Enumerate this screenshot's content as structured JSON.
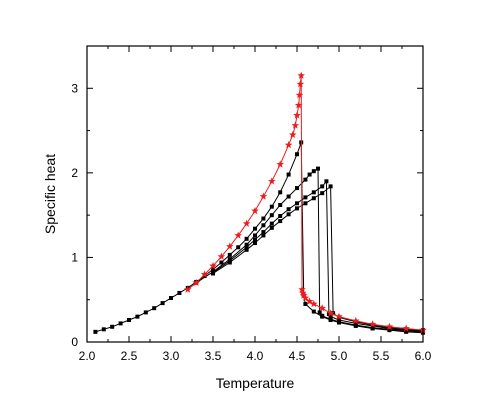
{
  "chart_data": {
    "type": "line",
    "title": "",
    "xlabel": "Temperature",
    "ylabel": "Specific heat",
    "xlim": [
      2.0,
      6.0
    ],
    "ylim": [
      0,
      3.5
    ],
    "xticks": [
      2.0,
      2.5,
      3.0,
      3.5,
      4.0,
      4.5,
      5.0,
      5.5,
      6.0
    ],
    "yticks": [
      0,
      1,
      2,
      3
    ],
    "xtick_labels": [
      "2.0",
      "2.5",
      "3.0",
      "3.5",
      "4.0",
      "4.5",
      "5.0",
      "5.5",
      "6.0"
    ],
    "ytick_labels": [
      "0",
      "1",
      "2",
      "3"
    ],
    "grid": false,
    "legend": "none",
    "series": [
      {
        "color": "#000000",
        "marker": "square",
        "x": [
          2.1,
          2.2,
          2.3,
          2.4,
          2.5,
          2.6,
          2.7,
          2.8,
          2.9,
          3.0,
          3.1,
          3.2,
          3.3,
          3.4,
          3.5,
          3.6,
          3.7,
          3.8,
          3.9,
          4.0,
          4.1,
          4.2,
          4.3,
          4.4,
          4.5,
          4.55,
          4.58,
          4.6,
          4.7,
          4.8,
          4.9,
          5.0,
          5.2,
          5.4,
          5.6,
          5.8,
          6.0
        ],
        "values": [
          0.12,
          0.15,
          0.18,
          0.22,
          0.26,
          0.3,
          0.35,
          0.4,
          0.46,
          0.52,
          0.58,
          0.64,
          0.71,
          0.78,
          0.86,
          0.94,
          1.03,
          1.12,
          1.22,
          1.34,
          1.46,
          1.6,
          1.77,
          1.98,
          2.22,
          2.36,
          0.55,
          0.45,
          0.36,
          0.3,
          0.26,
          0.23,
          0.19,
          0.16,
          0.14,
          0.12,
          0.11
        ]
      },
      {
        "color": "#000000",
        "marker": "square",
        "x": [
          3.3,
          3.5,
          3.7,
          3.9,
          4.0,
          4.1,
          4.2,
          4.3,
          4.4,
          4.5,
          4.6,
          4.65,
          4.7,
          4.75,
          4.77,
          4.8,
          4.9,
          5.0,
          5.2,
          5.4,
          5.6,
          5.8,
          6.0
        ],
        "values": [
          0.7,
          0.83,
          0.98,
          1.15,
          1.26,
          1.38,
          1.5,
          1.62,
          1.72,
          1.82,
          1.92,
          1.98,
          2.02,
          2.05,
          0.35,
          0.31,
          0.27,
          0.24,
          0.2,
          0.17,
          0.15,
          0.13,
          0.12
        ]
      },
      {
        "color": "#000000",
        "marker": "square",
        "x": [
          3.5,
          3.7,
          3.9,
          4.0,
          4.1,
          4.2,
          4.3,
          4.4,
          4.5,
          4.6,
          4.7,
          4.8,
          4.85,
          4.88,
          4.9,
          5.0,
          5.2,
          5.4,
          5.6,
          5.8,
          6.0
        ],
        "values": [
          0.82,
          0.96,
          1.12,
          1.21,
          1.3,
          1.4,
          1.49,
          1.57,
          1.64,
          1.71,
          1.77,
          1.84,
          1.9,
          0.33,
          0.3,
          0.26,
          0.22,
          0.19,
          0.16,
          0.14,
          0.13
        ]
      },
      {
        "color": "#000000",
        "marker": "square",
        "x": [
          3.5,
          3.7,
          3.9,
          4.0,
          4.1,
          4.2,
          4.3,
          4.4,
          4.5,
          4.6,
          4.7,
          4.8,
          4.9,
          4.93,
          5.0,
          5.2,
          5.4,
          5.6,
          5.8,
          6.0
        ],
        "values": [
          0.81,
          0.94,
          1.09,
          1.17,
          1.26,
          1.35,
          1.43,
          1.51,
          1.58,
          1.64,
          1.7,
          1.76,
          1.84,
          0.34,
          0.29,
          0.24,
          0.2,
          0.17,
          0.15,
          0.14
        ]
      },
      {
        "color": "#ee1c1c",
        "marker": "star",
        "x": [
          3.2,
          3.3,
          3.4,
          3.5,
          3.6,
          3.7,
          3.8,
          3.9,
          4.0,
          4.1,
          4.2,
          4.3,
          4.4,
          4.45,
          4.48,
          4.5,
          4.52,
          4.53,
          4.54,
          4.55,
          4.56,
          4.57,
          4.58,
          4.6,
          4.65,
          4.7,
          4.8,
          4.9,
          5.0,
          5.2,
          5.4,
          5.6,
          5.8,
          6.0
        ],
        "values": [
          0.62,
          0.7,
          0.8,
          0.9,
          1.01,
          1.13,
          1.26,
          1.4,
          1.55,
          1.72,
          1.9,
          2.1,
          2.33,
          2.45,
          2.56,
          2.68,
          2.8,
          2.92,
          3.05,
          3.15,
          0.62,
          0.58,
          0.55,
          0.52,
          0.48,
          0.45,
          0.4,
          0.34,
          0.3,
          0.25,
          0.21,
          0.18,
          0.16,
          0.14
        ]
      }
    ]
  }
}
